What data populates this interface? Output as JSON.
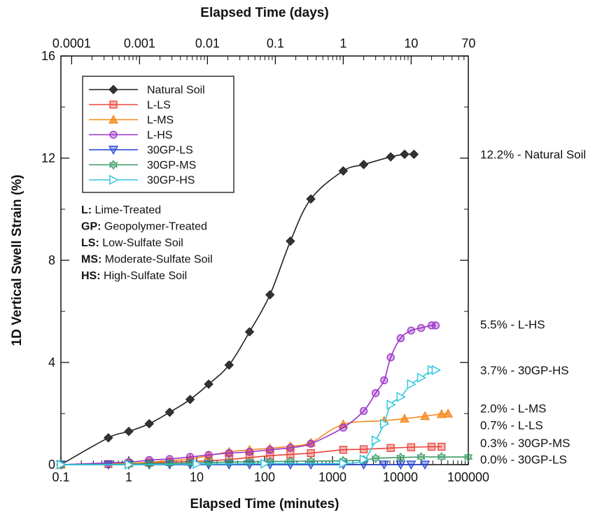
{
  "chart_data": {
    "type": "line",
    "xlabel": "Elapsed Time (minutes)",
    "x2label": "Elapsed Time (days)",
    "ylabel": "1D Vertical Swell Strain (%)",
    "x_scale": "log",
    "xlim": [
      0.1,
      100000
    ],
    "ylim": [
      0,
      16
    ],
    "x_ticks": [
      "0.1",
      "1",
      "10",
      "100",
      "1000",
      "10000",
      "100000"
    ],
    "x2_ticks": [
      "0.0001",
      "0.001",
      "0.01",
      "0.1",
      "1",
      "10",
      "70"
    ],
    "y_ticks": [
      "0",
      "4",
      "8",
      "12",
      "16"
    ],
    "legend_position": "top-left",
    "grid": false,
    "series": [
      {
        "name": "Natural Soil",
        "color": "#222222",
        "marker": "diamond",
        "x": [
          0.1,
          0.5,
          1,
          2,
          4,
          8,
          15,
          30,
          60,
          120,
          240,
          480,
          1440,
          2880,
          7200,
          11520,
          15840
        ],
        "y": [
          0,
          1.05,
          1.3,
          1.6,
          2.05,
          2.55,
          3.15,
          3.9,
          5.2,
          6.65,
          8.75,
          10.4,
          11.5,
          11.75,
          12.05,
          12.15,
          12.15
        ]
      },
      {
        "name": "L-LS",
        "color": "#e8433c",
        "marker": "square",
        "x": [
          0.1,
          0.5,
          1,
          2,
          4,
          8,
          15,
          30,
          60,
          120,
          240,
          480,
          1440,
          2880,
          7200,
          14400,
          28800,
          40320
        ],
        "y": [
          0,
          0.02,
          0.05,
          0.08,
          0.1,
          0.12,
          0.15,
          0.2,
          0.28,
          0.35,
          0.4,
          0.45,
          0.58,
          0.6,
          0.65,
          0.68,
          0.7,
          0.7
        ]
      },
      {
        "name": "L-MS",
        "color": "#f58a1f",
        "marker": "triangle-up",
        "x": [
          0.1,
          1,
          2,
          4,
          8,
          15,
          30,
          60,
          120,
          240,
          480,
          1440,
          5760,
          11520,
          23040,
          40320,
          50400
        ],
        "y": [
          0,
          0.05,
          0.1,
          0.15,
          0.22,
          0.35,
          0.5,
          0.58,
          0.64,
          0.72,
          0.86,
          1.58,
          1.72,
          1.8,
          1.9,
          1.98,
          2.0
        ]
      },
      {
        "name": "L-HS",
        "color": "#9a32c8",
        "marker": "circle",
        "x": [
          0.1,
          1,
          2,
          4,
          8,
          15,
          30,
          60,
          120,
          240,
          480,
          1440,
          2880,
          4320,
          5760,
          7200,
          10080,
          14400,
          20160,
          28800,
          33120
        ],
        "y": [
          0,
          0.1,
          0.18,
          0.22,
          0.3,
          0.38,
          0.45,
          0.5,
          0.58,
          0.66,
          0.82,
          1.45,
          2.1,
          2.8,
          3.3,
          4.2,
          4.95,
          5.25,
          5.35,
          5.45,
          5.45
        ]
      },
      {
        "name": "30GP-LS",
        "color": "#1f3fd6",
        "marker": "triangle-down",
        "x": [
          0.1,
          0.5,
          1,
          2,
          4,
          8,
          15,
          30,
          60,
          120,
          240,
          480,
          1440,
          2880,
          5760,
          10080,
          14400,
          23040
        ],
        "y": [
          0,
          0,
          0,
          0,
          0,
          0,
          0,
          0,
          0,
          0,
          0,
          0,
          0,
          0,
          0,
          0,
          0,
          0
        ]
      },
      {
        "name": "30GP-MS",
        "color": "#3a9a66",
        "marker": "star",
        "x": [
          0.1,
          1,
          2,
          4,
          8,
          15,
          30,
          60,
          120,
          240,
          480,
          1440,
          2880,
          4320,
          10080,
          20160,
          40320,
          100000
        ],
        "y": [
          0,
          0.02,
          0.04,
          0.05,
          0.06,
          0.08,
          0.1,
          0.11,
          0.12,
          0.13,
          0.14,
          0.15,
          0.18,
          0.25,
          0.28,
          0.3,
          0.3,
          0.3
        ]
      },
      {
        "name": "30GP-HS",
        "color": "#32c6e0",
        "marker": "triangle-right",
        "x": [
          0.1,
          1,
          10,
          100,
          1440,
          2880,
          4320,
          5760,
          7200,
          10080,
          14400,
          20160,
          28800,
          33120
        ],
        "y": [
          0,
          0,
          0.02,
          0.04,
          0.05,
          0.2,
          0.95,
          1.6,
          2.35,
          2.65,
          3.15,
          3.4,
          3.7,
          3.7
        ]
      }
    ],
    "end_labels": [
      {
        "text": "12.2% - Natural Soil",
        "y": 12.15
      },
      {
        "text": "5.5% - L-HS",
        "y": 5.5
      },
      {
        "text": "3.7% - 30GP-HS",
        "y": 3.7
      },
      {
        "text": "2.0% - L-MS",
        "y": 2.2
      },
      {
        "text": "0.7% - L-LS",
        "y": 1.55
      },
      {
        "text": "0.3% - 30GP-MS",
        "y": 0.85
      },
      {
        "text": "0.0% - 30GP-LS",
        "y": 0.2
      }
    ],
    "abbreviations": [
      {
        "key": "L:",
        "text": " Lime-Treated"
      },
      {
        "key": "GP:",
        "text": " Geopolymer-Treated"
      },
      {
        "key": "LS:",
        "text": " Low-Sulfate Soil"
      },
      {
        "key": "MS:",
        "text": " Moderate-Sulfate Soil"
      },
      {
        "key": "HS:",
        "text": " High-Sulfate Soil"
      }
    ]
  }
}
